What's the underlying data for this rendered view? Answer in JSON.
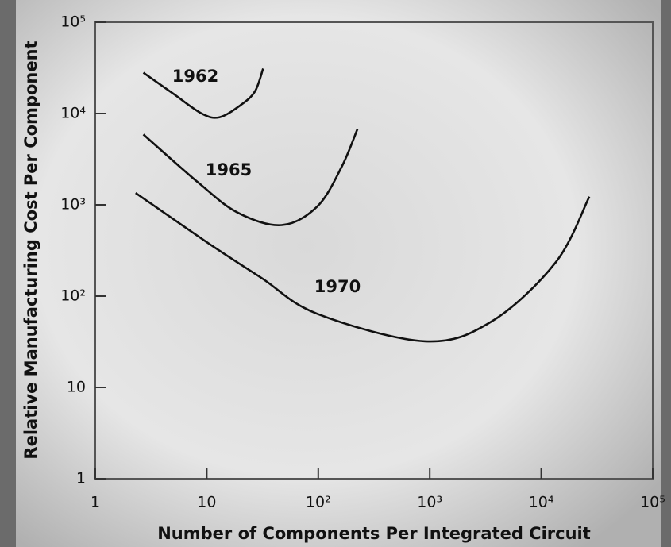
{
  "chart_data": {
    "type": "line",
    "xlabel": "Number of Components Per Integrated Circuit",
    "ylabel": "Relative Manufacturing Cost Per Component",
    "xscale": "log",
    "yscale": "log",
    "xlim": [
      1,
      100000
    ],
    "ylim": [
      1,
      100000
    ],
    "xticks": [
      1,
      10,
      {
        "value": 100,
        "label": "10²"
      },
      {
        "value": 1000,
        "label": "10³"
      },
      {
        "value": 10000,
        "label": "10⁴"
      },
      {
        "value": 100000,
        "label": "10⁵"
      }
    ],
    "yticks": [
      1,
      10,
      {
        "value": 100,
        "label": "10²"
      },
      {
        "value": 1000,
        "label": "10³"
      },
      {
        "value": 10000,
        "label": "10⁴"
      },
      {
        "value": 100000,
        "label": "10⁵"
      }
    ],
    "series": [
      {
        "name": "1962",
        "color": "#111111",
        "x": [
          2.7,
          5,
          9,
          13,
          20,
          27,
          32
        ],
        "values": [
          28000,
          16500,
          10000,
          9100,
          12300,
          17400,
          31000
        ]
      },
      {
        "name": "1965",
        "color": "#111111",
        "x": [
          2.7,
          8.4,
          19,
          47,
          98,
          162,
          225
        ],
        "values": [
          5900,
          1750,
          820,
          600,
          960,
          2600,
          6800
        ]
      },
      {
        "name": "1970",
        "color": "#111111",
        "x": [
          2.3,
          10,
          31,
          98,
          910,
          3600,
          13500,
          27000
        ],
        "values": [
          1350,
          390,
          158,
          64,
          32,
          53,
          235,
          1230
        ]
      }
    ]
  }
}
